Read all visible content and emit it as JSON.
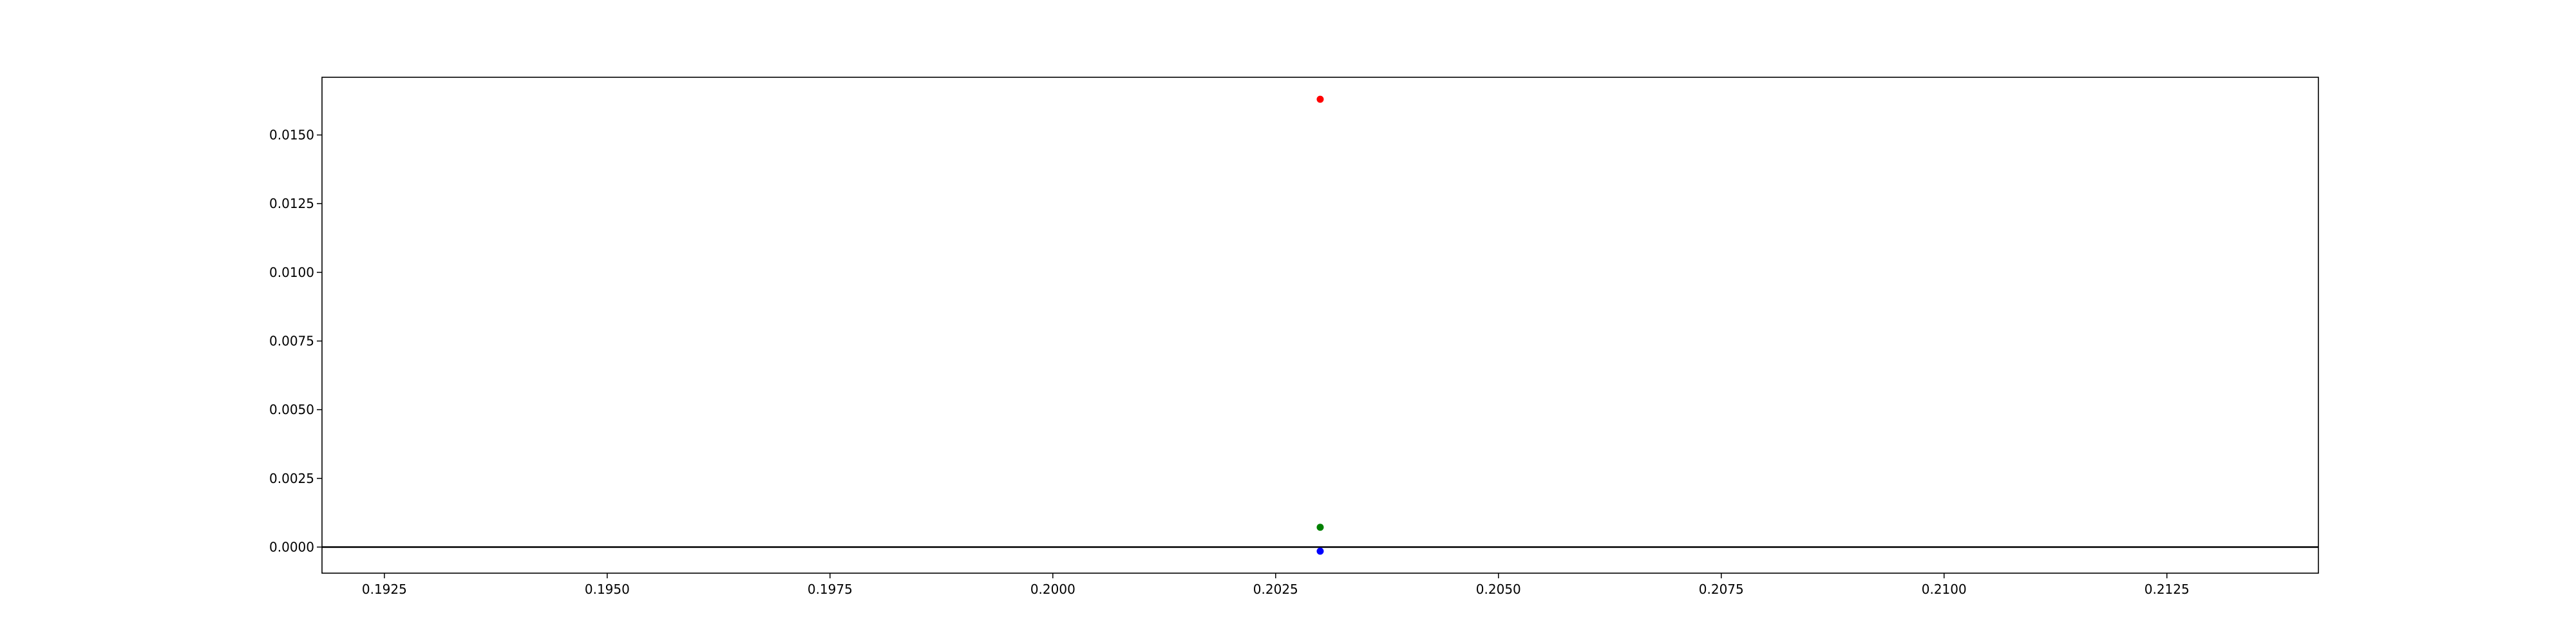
{
  "chart_data": {
    "type": "scatter",
    "title": "",
    "xlabel": "",
    "ylabel": "",
    "xlim": [
      0.1918,
      0.2142
    ],
    "ylim": [
      -0.00095,
      0.0171
    ],
    "grid": false,
    "x_ticks": [
      0.1925,
      0.195,
      0.1975,
      0.2,
      0.2025,
      0.205,
      0.2075,
      0.21,
      0.2125
    ],
    "x_tick_labels": [
      "0.1925",
      "0.1950",
      "0.1975",
      "0.2000",
      "0.2025",
      "0.2050",
      "0.2075",
      "0.2100",
      "0.2125"
    ],
    "y_ticks": [
      0.0,
      0.0025,
      0.005,
      0.0075,
      0.01,
      0.0125,
      0.015
    ],
    "y_tick_labels": [
      "0.0000",
      "0.0025",
      "0.0050",
      "0.0075",
      "0.0100",
      "0.0125",
      "0.0150"
    ],
    "reference_line": {
      "y": 0.0,
      "color": "#000000"
    },
    "series": [
      {
        "color": "#ff0000",
        "points": [
          {
            "x": 0.203,
            "y": 0.0163
          }
        ]
      },
      {
        "color": "#008000",
        "points": [
          {
            "x": 0.203,
            "y": 0.00072
          }
        ]
      },
      {
        "color": "#0000ff",
        "points": [
          {
            "x": 0.203,
            "y": -0.00015
          }
        ]
      }
    ]
  }
}
